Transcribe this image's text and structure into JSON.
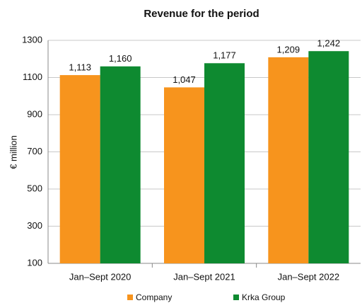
{
  "chart_data": {
    "type": "bar",
    "title": "Revenue for the period",
    "y_label": "€ million",
    "categories": [
      "Jan–Sept 2020",
      "Jan–Sept 2021",
      "Jan–Sept 2022"
    ],
    "series": [
      {
        "name": "Company",
        "color": "#f7941d",
        "values": [
          1113,
          1047,
          1209
        ],
        "value_labels": [
          "1,113",
          "1,047",
          "1,209"
        ]
      },
      {
        "name": "Krka Group",
        "color": "#0e8a30",
        "values": [
          1160,
          1177,
          1242
        ],
        "value_labels": [
          "1,160",
          "1,177",
          "1,242"
        ]
      }
    ],
    "ylim": [
      100,
      1300
    ],
    "yticks": [
      100,
      300,
      500,
      700,
      900,
      1100,
      1300
    ],
    "grid": true,
    "legend": "bottom"
  }
}
